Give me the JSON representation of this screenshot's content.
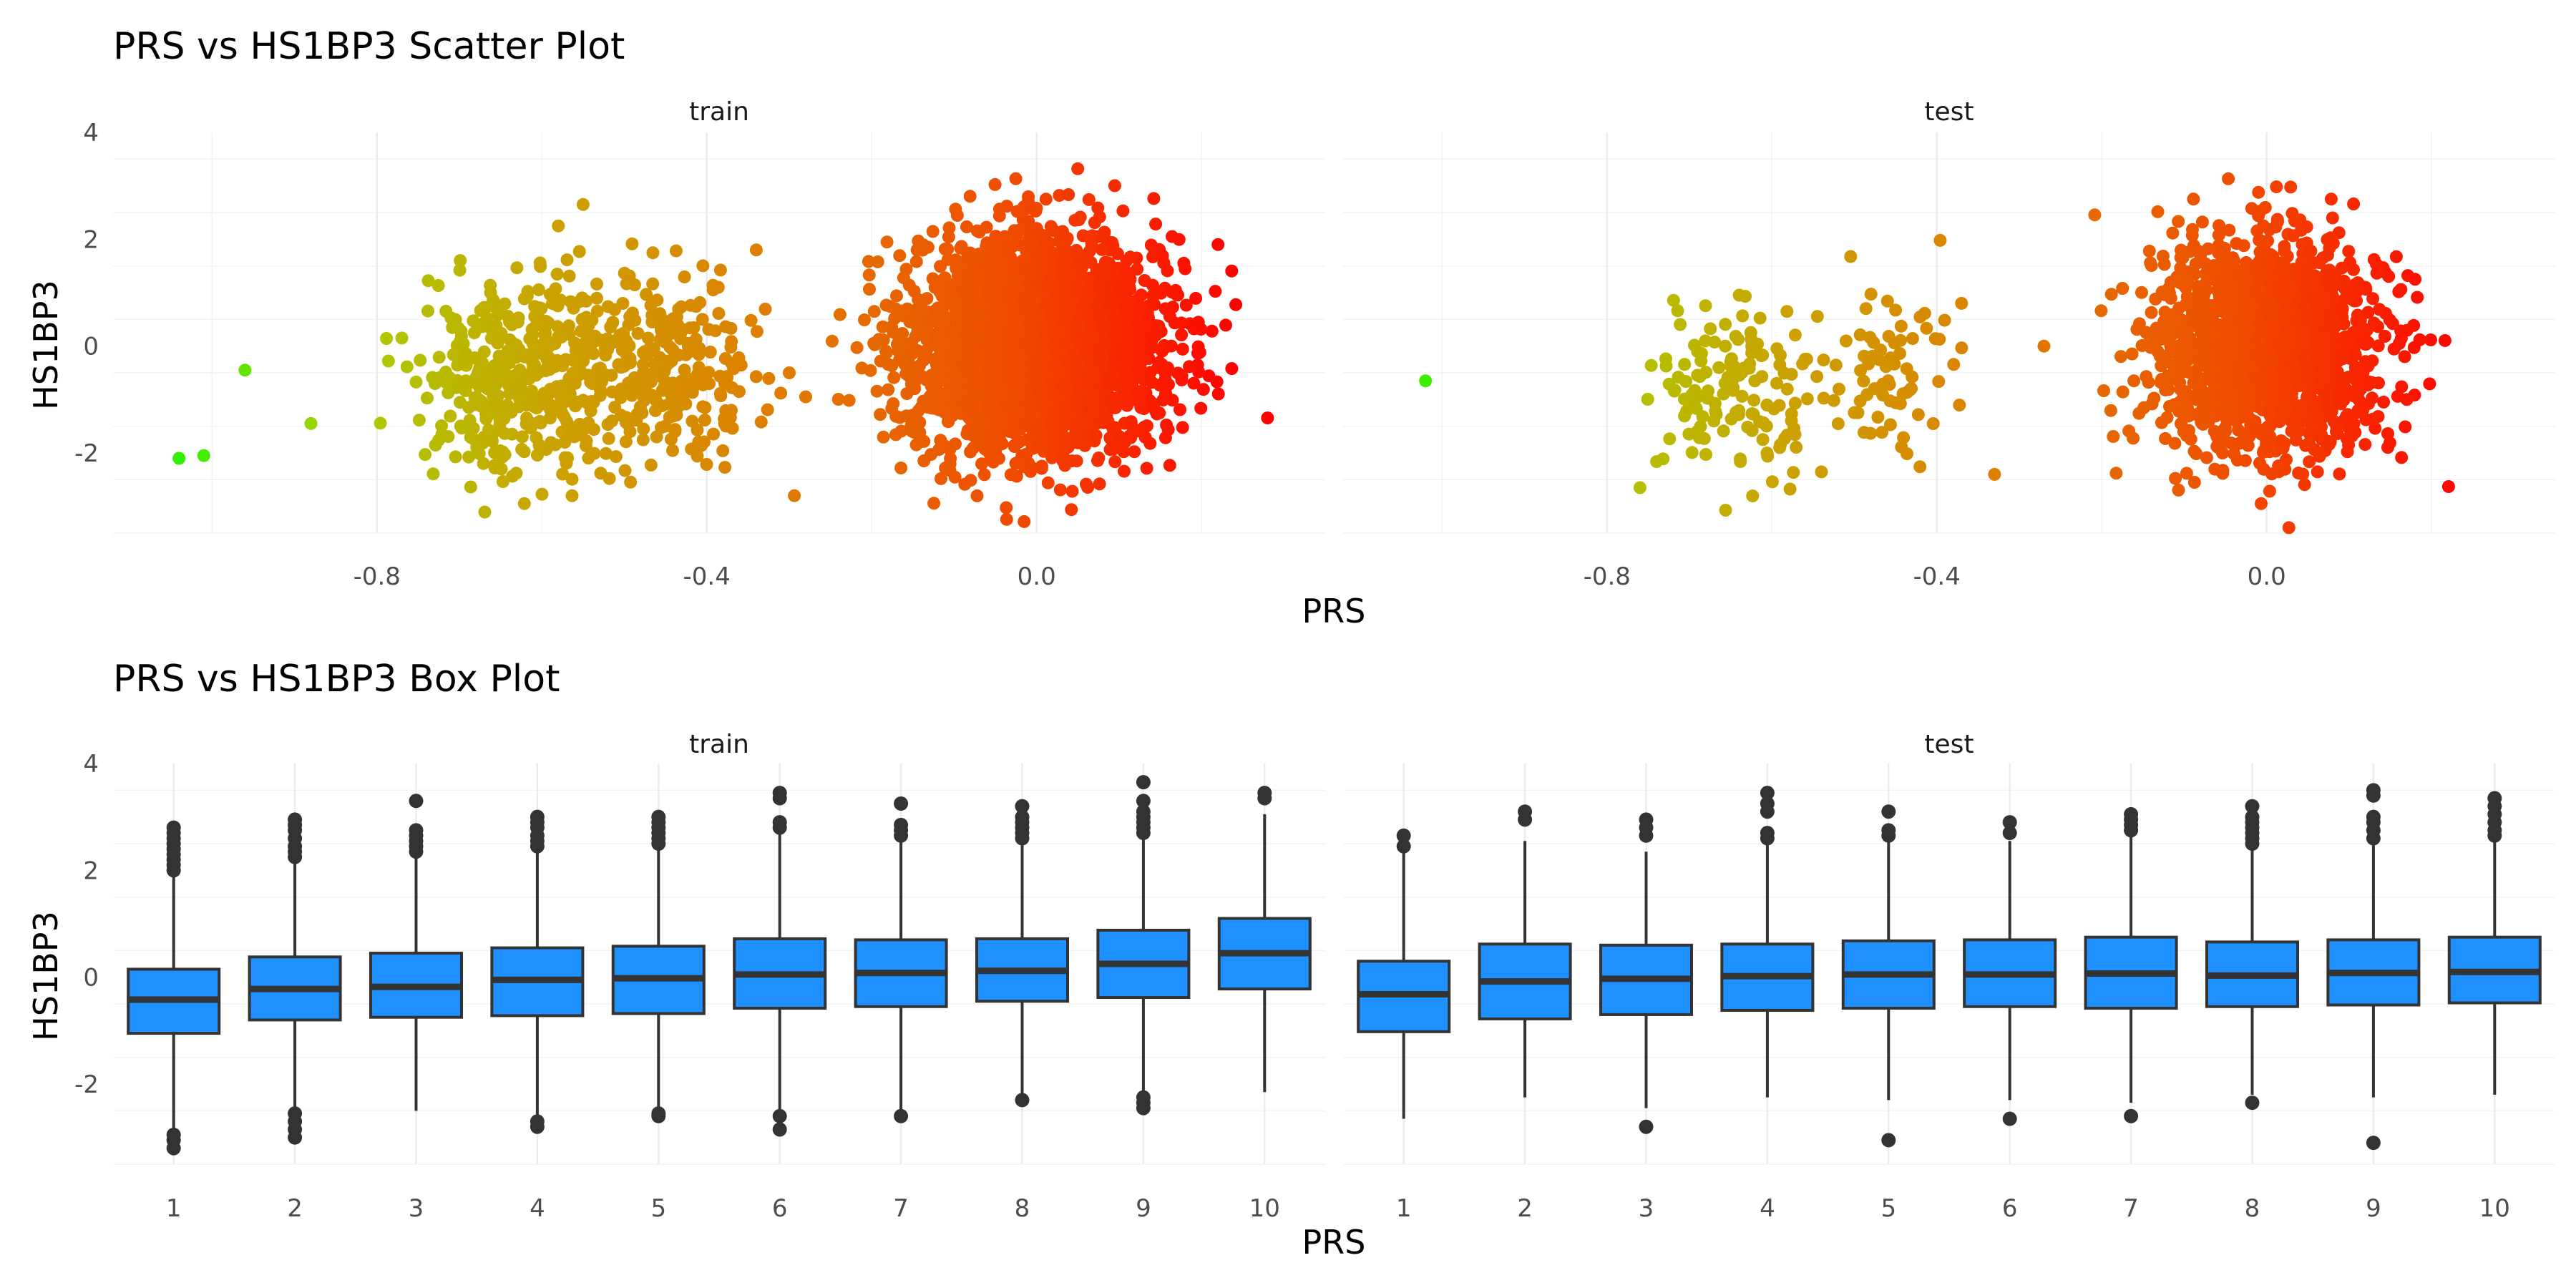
{
  "chart_data": [
    {
      "type": "scatter",
      "title": "PRS vs HS1BP3 Scatter Plot",
      "xlabel": "PRS",
      "ylabel": "HS1BP3",
      "xlim": [
        -1.12,
        0.35
      ],
      "ylim": [
        -3.5,
        4.0
      ],
      "x_ticks": [
        -0.8,
        -0.4,
        0.0
      ],
      "x_tick_labels": [
        "-0.8",
        "-0.4",
        "0.0"
      ],
      "y_ticks": [
        -2,
        0,
        2,
        4
      ],
      "y_tick_labels": [
        "-2",
        "0",
        "2",
        "4"
      ],
      "grid": true,
      "color_gradient": [
        "#00ff00",
        "#a8d000",
        "#cca000",
        "#e07a00",
        "#f04a00",
        "#ff0000"
      ],
      "color_by": "PRS",
      "legend": "none",
      "panels": [
        {
          "strip": "train",
          "clusters": [
            {
              "x_center": 0.0,
              "x_sd": 0.075,
              "y_center": 0.0,
              "y_sd": 1.0,
              "n": 3000
            },
            {
              "x_center": -0.62,
              "x_sd": 0.06,
              "y_center": -0.6,
              "y_sd": 0.9,
              "n": 420
            },
            {
              "x_center": -0.45,
              "x_sd": 0.055,
              "y_center": -0.3,
              "y_sd": 0.8,
              "n": 260
            }
          ],
          "points": [
            {
              "x": -1.04,
              "y": -2.1
            },
            {
              "x": -1.01,
              "y": -2.05
            },
            {
              "x": -0.96,
              "y": -0.45
            },
            {
              "x": -0.88,
              "y": -1.45
            },
            {
              "x": 0.22,
              "y": 1.9
            },
            {
              "x": -0.55,
              "y": 2.65
            },
            {
              "x": -0.58,
              "y": 2.25
            },
            {
              "x": -0.34,
              "y": 1.8
            },
            {
              "x": -0.3,
              "y": -0.5
            },
            {
              "x": -0.28,
              "y": -0.95
            }
          ]
        },
        {
          "strip": "test",
          "clusters": [
            {
              "x_center": 0.0,
              "x_sd": 0.07,
              "y_center": 0.0,
              "y_sd": 1.0,
              "n": 1500
            },
            {
              "x_center": -0.64,
              "x_sd": 0.05,
              "y_center": -0.7,
              "y_sd": 0.8,
              "n": 140
            },
            {
              "x_center": -0.46,
              "x_sd": 0.05,
              "y_center": -0.5,
              "y_sd": 0.8,
              "n": 70
            }
          ],
          "points": [
            {
              "x": -1.02,
              "y": -0.65
            },
            {
              "x": -0.76,
              "y": -2.65
            },
            {
              "x": -0.37,
              "y": 0.8
            },
            {
              "x": -0.33,
              "y": -2.4
            },
            {
              "x": -0.27,
              "y": 0.0
            },
            {
              "x": 0.18,
              "y": 1.25
            },
            {
              "x": 0.17,
              "y": -1.0
            }
          ]
        }
      ]
    },
    {
      "type": "box",
      "title": "PRS vs HS1BP3 Box Plot",
      "xlabel": "PRS",
      "ylabel": "HS1BP3",
      "categories": [
        "1",
        "2",
        "3",
        "4",
        "5",
        "6",
        "7",
        "8",
        "9",
        "10"
      ],
      "ylim": [
        -3.5,
        4.0
      ],
      "y_ticks": [
        -2,
        0,
        2,
        4
      ],
      "y_tick_labels": [
        "-2",
        "0",
        "2",
        "4"
      ],
      "grid": true,
      "box_color": "#1e90ff",
      "line_color": "#333333",
      "legend": "none",
      "panels": [
        {
          "strip": "train",
          "boxes": [
            {
              "q1": -1.05,
              "median": -0.42,
              "q3": 0.15,
              "whisker_low": -2.85,
              "whisker_high": 1.95,
              "outliers": [
                -3.2,
                -3.05,
                -2.95,
                2.0,
                2.1,
                2.2,
                2.3,
                2.4,
                2.5,
                2.6,
                2.7,
                2.8
              ]
            },
            {
              "q1": -0.8,
              "median": -0.22,
              "q3": 0.38,
              "whisker_low": -2.5,
              "whisker_high": 2.2,
              "outliers": [
                -3.0,
                -2.85,
                -2.7,
                -2.55,
                2.25,
                2.35,
                2.45,
                2.6,
                2.75,
                2.85,
                2.95
              ]
            },
            {
              "q1": -0.75,
              "median": -0.18,
              "q3": 0.45,
              "whisker_low": -2.5,
              "whisker_high": 2.3,
              "outliers": [
                2.35,
                2.45,
                2.55,
                2.65,
                2.75,
                3.3
              ]
            },
            {
              "q1": -0.72,
              "median": -0.05,
              "q3": 0.55,
              "whisker_low": -2.6,
              "whisker_high": 2.4,
              "outliers": [
                -2.8,
                -2.7,
                2.45,
                2.55,
                2.65,
                2.8,
                2.9,
                3.0
              ]
            },
            {
              "q1": -0.68,
              "median": -0.02,
              "q3": 0.58,
              "whisker_low": -2.5,
              "whisker_high": 2.45,
              "outliers": [
                -2.6,
                -2.55,
                2.5,
                2.6,
                2.7,
                2.8,
                2.9,
                3.0
              ]
            },
            {
              "q1": -0.58,
              "median": 0.05,
              "q3": 0.72,
              "whisker_low": -2.55,
              "whisker_high": 2.75,
              "outliers": [
                -2.85,
                -2.6,
                2.8,
                2.9,
                3.35,
                3.45
              ]
            },
            {
              "q1": -0.55,
              "median": 0.08,
              "q3": 0.7,
              "whisker_low": -2.5,
              "whisker_high": 2.6,
              "outliers": [
                -2.6,
                2.65,
                2.75,
                2.85,
                3.25
              ]
            },
            {
              "q1": -0.45,
              "median": 0.12,
              "q3": 0.72,
              "whisker_low": -2.2,
              "whisker_high": 2.55,
              "outliers": [
                -2.3,
                2.6,
                2.7,
                2.8,
                2.9,
                3.0,
                3.2
              ]
            },
            {
              "q1": -0.38,
              "median": 0.25,
              "q3": 0.88,
              "whisker_low": -2.2,
              "whisker_high": 2.65,
              "outliers": [
                -2.45,
                -2.35,
                -2.25,
                2.7,
                2.8,
                2.9,
                3.0,
                3.1,
                3.3,
                3.65
              ]
            },
            {
              "q1": -0.22,
              "median": 0.45,
              "q3": 1.1,
              "whisker_low": -2.15,
              "whisker_high": 3.05,
              "outliers": [
                3.35,
                3.45
              ]
            }
          ]
        },
        {
          "strip": "test",
          "boxes": [
            {
              "q1": -1.02,
              "median": -0.32,
              "q3": 0.3,
              "whisker_low": -2.65,
              "whisker_high": 2.35,
              "outliers": [
                2.45,
                2.65
              ]
            },
            {
              "q1": -0.78,
              "median": -0.08,
              "q3": 0.62,
              "whisker_low": -2.25,
              "whisker_high": 2.55,
              "outliers": [
                2.95,
                3.1
              ]
            },
            {
              "q1": -0.7,
              "median": -0.03,
              "q3": 0.6,
              "whisker_low": -2.45,
              "whisker_high": 2.35,
              "outliers": [
                -2.8,
                2.65,
                2.8,
                2.95
              ]
            },
            {
              "q1": -0.62,
              "median": 0.02,
              "q3": 0.62,
              "whisker_low": -2.25,
              "whisker_high": 2.55,
              "outliers": [
                2.6,
                2.7,
                3.1,
                3.25,
                3.45
              ]
            },
            {
              "q1": -0.58,
              "median": 0.05,
              "q3": 0.68,
              "whisker_low": -2.3,
              "whisker_high": 2.6,
              "outliers": [
                -3.05,
                2.65,
                2.75,
                3.1
              ]
            },
            {
              "q1": -0.55,
              "median": 0.05,
              "q3": 0.7,
              "whisker_low": -2.3,
              "whisker_high": 2.55,
              "outliers": [
                -2.65,
                2.7,
                2.9
              ]
            },
            {
              "q1": -0.58,
              "median": 0.07,
              "q3": 0.75,
              "whisker_low": -2.35,
              "whisker_high": 2.7,
              "outliers": [
                -2.6,
                2.75,
                2.85,
                2.95,
                3.05
              ]
            },
            {
              "q1": -0.55,
              "median": 0.03,
              "q3": 0.66,
              "whisker_low": -2.2,
              "whisker_high": 2.45,
              "outliers": [
                -2.35,
                2.5,
                2.6,
                2.7,
                2.8,
                2.9,
                3.0,
                3.2
              ]
            },
            {
              "q1": -0.52,
              "median": 0.08,
              "q3": 0.7,
              "whisker_low": -2.25,
              "whisker_high": 2.55,
              "outliers": [
                -3.1,
                2.6,
                2.75,
                2.9,
                3.0,
                3.4,
                3.5
              ]
            },
            {
              "q1": -0.48,
              "median": 0.1,
              "q3": 0.75,
              "whisker_low": -2.2,
              "whisker_high": 2.6,
              "outliers": [
                2.65,
                2.75,
                2.9,
                3.05,
                3.2,
                3.35
              ]
            }
          ]
        }
      ]
    }
  ],
  "charts": [
    {
      "title": "PRS vs HS1BP3 Scatter Plot",
      "xlabel": "PRS",
      "ylabel": "HS1BP3",
      "panels": [
        {
          "strip": "train"
        },
        {
          "strip": "test"
        }
      ]
    },
    {
      "title": "PRS vs HS1BP3 Box Plot",
      "xlabel": "PRS",
      "ylabel": "HS1BP3",
      "panels": [
        {
          "strip": "train"
        },
        {
          "strip": "test"
        }
      ]
    }
  ]
}
